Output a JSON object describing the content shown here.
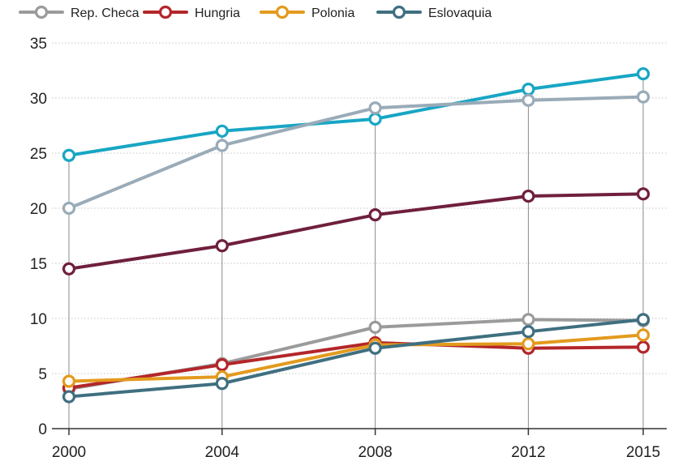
{
  "chart_data": {
    "type": "line",
    "title": "",
    "xlabel": "",
    "ylabel": "",
    "x": [
      2000,
      2004,
      2008,
      2012,
      2015
    ],
    "x_tick_labels": [
      "2000",
      "2004",
      "2008",
      "2012",
      "2015"
    ],
    "ylim": [
      0,
      35
    ],
    "y_ticks": [
      0,
      5,
      10,
      15,
      20,
      25,
      30,
      35
    ],
    "y_tick_labels": [
      "0",
      "5",
      "10",
      "15",
      "20",
      "25",
      "30",
      "35"
    ],
    "grid": "horizontal dotted, vertical lines at data years",
    "legend_position": "top-left",
    "legend": [
      {
        "name": "Rep. Checa",
        "color": "#9b9b9b"
      },
      {
        "name": "Hungria",
        "color": "#b3262a"
      },
      {
        "name": "Polonia",
        "color": "#e39a1d"
      },
      {
        "name": "Eslovaquia",
        "color": "#3f6f80"
      }
    ],
    "series": [
      {
        "name": "",
        "color": "#17a6c4",
        "values": [
          24.8,
          27.0,
          28.1,
          30.8,
          32.2
        ]
      },
      {
        "name": "",
        "color": "#9aabb8",
        "values": [
          20.0,
          25.7,
          29.1,
          29.8,
          30.1
        ]
      },
      {
        "name": "",
        "color": "#6f1f3d",
        "values": [
          14.5,
          16.6,
          19.4,
          21.1,
          21.3
        ]
      },
      {
        "name": "Rep. Checa",
        "color": "#9b9b9b",
        "values": [
          3.6,
          5.9,
          9.2,
          9.9,
          9.8
        ]
      },
      {
        "name": "Hungria",
        "color": "#b3262a",
        "values": [
          3.7,
          5.8,
          7.8,
          7.3,
          7.4
        ]
      },
      {
        "name": "Polonia",
        "color": "#e39a1d",
        "values": [
          4.3,
          4.7,
          7.6,
          7.7,
          8.5
        ]
      },
      {
        "name": "Eslovaquia",
        "color": "#3f6f80",
        "values": [
          2.9,
          4.1,
          7.3,
          8.8,
          9.9
        ]
      }
    ]
  }
}
